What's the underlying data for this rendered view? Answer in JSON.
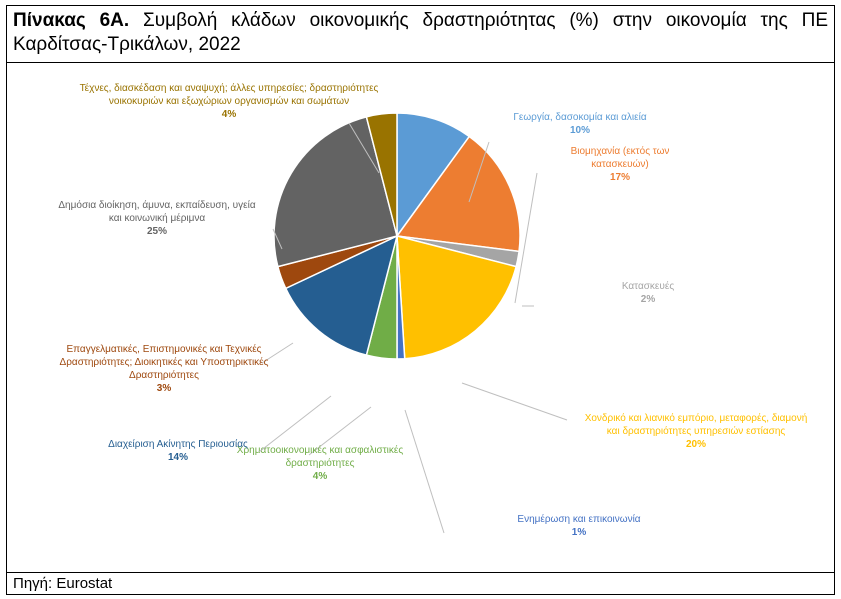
{
  "header": {
    "table_number": "Πίνακας 6Α.",
    "title": "Συμβολή κλάδων οικονομικής δραστηριότητας (%) στην οικονομία της ΠΕ Καρδίτσας-Τρικάλων, 2022"
  },
  "footer": {
    "source": "Πηγή: Eurostat"
  },
  "chart_data": {
    "type": "pie",
    "title": "",
    "slices": [
      {
        "label_lines": [
          "Γεωργία, δασοκομία και αλιεία"
        ],
        "value": 10,
        "value_label": "10%",
        "color": "#5B9BD5"
      },
      {
        "label_lines": [
          "Βιομηχανία (εκτός των",
          "κατασκευών)"
        ],
        "value": 17,
        "value_label": "17%",
        "color": "#ED7D31"
      },
      {
        "label_lines": [
          "Κατασκευές"
        ],
        "value": 2,
        "value_label": "2%",
        "color": "#A5A5A5"
      },
      {
        "label_lines": [
          "Χονδρικό και λιανικό εμπόριο, μεταφορές, διαμονή",
          "και δραστηριότητες υπηρεσιών εστίασης"
        ],
        "value": 20,
        "value_label": "20%",
        "color": "#FFC000"
      },
      {
        "label_lines": [
          "Ενημέρωση και επικοινωνία"
        ],
        "value": 1,
        "value_label": "1%",
        "color": "#4472C4"
      },
      {
        "label_lines": [
          "Χρηματοοικονομικές και ασφαλιστικές",
          "δραστηριότητες"
        ],
        "value": 4,
        "value_label": "4%",
        "color": "#70AD47"
      },
      {
        "label_lines": [
          "Διαχείριση Ακίνητης Περιουσίας"
        ],
        "value": 14,
        "value_label": "14%",
        "color": "#255E91"
      },
      {
        "label_lines": [
          "Επαγγελματικές, Επιστημονικές και Τεχνικές",
          "Δραστηριότητες; Διοικητικές και Υποστηρικτικές",
          "Δραστηριότητες"
        ],
        "value": 3,
        "value_label": "3%",
        "color": "#9E480E"
      },
      {
        "label_lines": [
          "Δημόσια διοίκηση, άμυνα, εκπαίδευση, υγεία",
          "και κοινωνική μέριμνα"
        ],
        "value": 25,
        "value_label": "25%",
        "color": "#636363"
      },
      {
        "label_lines": [
          "Τέχνες, διασκέδαση και αναψυχή; άλλες υπηρεσίες; δραστηριότητες",
          "νοικοκυριών και εξωχώριων οργανισμών και σωμάτων"
        ],
        "value": 4,
        "value_label": "4%",
        "color": "#997300"
      }
    ]
  }
}
